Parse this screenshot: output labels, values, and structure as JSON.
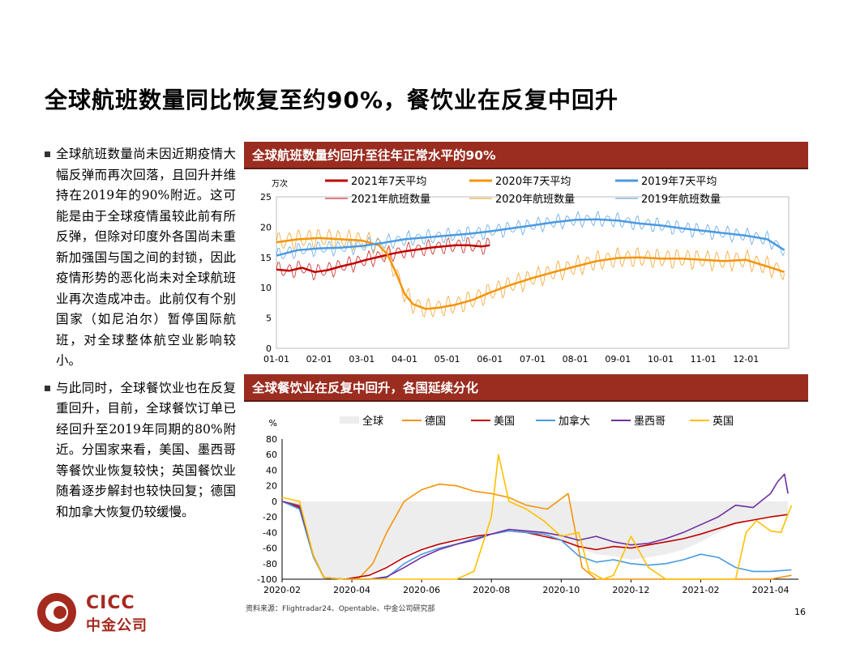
{
  "title": "全球航班数量同比恢复至约90%，餐饮业在反复中回升",
  "bullets": [
    "全球航班数量尚未因近期疫情大幅反弹而再次回落，且回升并维持在2019年的90%附近。这可能是由于全球疫情虽较此前有所反弹，但除对印度外各国尚未重新加强国与国之间的封锁，因此疫情形势的恶化尚未对全球航班业再次造成冲击。此前仅有个别国家（如尼泊尔）暂停国际航班，对全球整体航空业影响较小。",
    "与此同时，全球餐饮业也在反复重回升，目前，全球餐饮订单已经回升至2019年同期的80%附近。分国家来看，美国、墨西哥等餐饮业恢复较快；英国餐饮业随着逐步解封也较快回复；德国和加拿大恢复仍较缓慢。"
  ],
  "footnote": "资料来源：Flightradar24、Opentable、中金公司研究部",
  "page_number": "16",
  "logo": {
    "en": "CICC",
    "cn": "中金公司"
  },
  "colors": {
    "header": "#9b2d20",
    "red": "#c00000",
    "orange": "#f5940a",
    "blue": "#4a9ae0",
    "purple": "#7030a0",
    "yellow": "#ffc000",
    "gray": "#ededed"
  },
  "chart_data": [
    {
      "type": "line",
      "title": "全球航班数量约回升至往年正常水平的90%",
      "ylabel": "万次",
      "ylim": [
        0,
        25
      ],
      "yticks": [
        0,
        5,
        10,
        15,
        20,
        25
      ],
      "x_ticks": [
        "01-01",
        "02-01",
        "03-01",
        "04-01",
        "05-01",
        "06-01",
        "07-01",
        "08-01",
        "09-01",
        "10-01",
        "11-01",
        "12-01"
      ],
      "x_unit": "month (Jan=0 … Dec=11)",
      "legend": [
        "2021年7天平均",
        "2020年7天平均",
        "2019年7天平均",
        "2021年航班数量",
        "2020年航班数量",
        "2019年航班数量"
      ],
      "series": [
        {
          "name": "2021年7天平均",
          "color": "#c00000",
          "width": 2.5,
          "x": [
            0,
            0.3,
            0.6,
            0.9,
            1.2,
            1.5,
            1.8,
            2.1,
            2.4,
            2.7,
            3.0,
            3.3,
            3.6,
            3.9,
            4.2,
            4.5,
            4.8,
            5.0
          ],
          "y": [
            13.0,
            12.8,
            13.3,
            12.6,
            12.9,
            13.5,
            14.0,
            14.6,
            15.1,
            15.6,
            16.0,
            16.3,
            16.6,
            16.8,
            17.0,
            17.0,
            16.8,
            17.0
          ]
        },
        {
          "name": "2020年7天平均",
          "color": "#f5940a",
          "width": 2.5,
          "x": [
            0,
            0.5,
            1.0,
            1.5,
            2.0,
            2.4,
            2.6,
            2.8,
            3.0,
            3.2,
            3.5,
            3.8,
            4.2,
            4.6,
            5.0,
            5.5,
            6.0,
            6.5,
            7.0,
            7.5,
            8.0,
            8.5,
            9.0,
            9.5,
            10.0,
            10.5,
            11.0,
            11.5,
            11.9
          ],
          "y": [
            17.5,
            18.0,
            18.2,
            18.0,
            17.8,
            17.0,
            15.5,
            12.5,
            9.0,
            7.3,
            6.5,
            6.7,
            7.2,
            8.0,
            9.2,
            10.5,
            11.6,
            12.6,
            13.5,
            14.4,
            14.9,
            15.0,
            14.8,
            14.8,
            14.6,
            14.4,
            14.6,
            13.5,
            12.6
          ]
        },
        {
          "name": "2019年7天平均",
          "color": "#4a9ae0",
          "width": 2.5,
          "x": [
            0,
            0.5,
            1.0,
            1.5,
            2.0,
            2.5,
            3.0,
            3.5,
            4.0,
            4.5,
            5.0,
            5.5,
            6.0,
            6.5,
            7.0,
            7.5,
            8.0,
            8.5,
            9.0,
            9.5,
            10.0,
            10.5,
            11.0,
            11.5,
            11.9
          ],
          "y": [
            15.3,
            16.2,
            16.5,
            16.6,
            16.9,
            17.4,
            18.0,
            18.3,
            18.6,
            18.9,
            19.3,
            19.8,
            20.3,
            20.8,
            21.2,
            21.3,
            21.1,
            20.6,
            20.3,
            19.8,
            19.4,
            19.0,
            18.6,
            18.0,
            16.2
          ]
        }
      ]
    },
    {
      "type": "line",
      "title": "全球餐饮业在反复中回升，各国延续分化",
      "ylabel": "%",
      "ylim": [
        -100,
        80
      ],
      "yticks": [
        80,
        60,
        40,
        20,
        0,
        -20,
        -40,
        -60,
        -80,
        -100
      ],
      "x_ticks": [
        "2020-02",
        "2020-04",
        "2020-06",
        "2020-08",
        "2020-10",
        "2020-12",
        "2021-02",
        "2021-04"
      ],
      "x_unit": "months since 2020-02",
      "legend": [
        "全球",
        "德国",
        "美国",
        "加拿大",
        "墨西哥",
        "英国"
      ],
      "series": [
        {
          "name": "全球",
          "type": "area",
          "color": "#ededed",
          "x": [
            0,
            0.5,
            0.9,
            1.2,
            1.8,
            2.5,
            3.0,
            3.5,
            4.0,
            4.5,
            5.0,
            5.5,
            6.0,
            6.5,
            7.0,
            7.5,
            8.0,
            8.5,
            9.0,
            9.5,
            10.0,
            10.5,
            11.0,
            11.5,
            12.0,
            12.5,
            13.0,
            13.5,
            14.0,
            14.5
          ],
          "y": [
            0,
            -10,
            -70,
            -98,
            -100,
            -95,
            -82,
            -70,
            -60,
            -55,
            -48,
            -43,
            -40,
            -38,
            -40,
            -45,
            -50,
            -60,
            -68,
            -70,
            -75,
            -72,
            -68,
            -62,
            -52,
            -40,
            -30,
            -25,
            -20,
            -18
          ]
        },
        {
          "name": "德国",
          "color": "#f5940a",
          "x": [
            0,
            0.5,
            0.9,
            1.2,
            1.8,
            2.2,
            2.6,
            3.0,
            3.5,
            4.0,
            4.5,
            5.0,
            5.5,
            6.0,
            6.5,
            7.0,
            7.6,
            8.2,
            8.6,
            9.0,
            9.5,
            10.0,
            10.5,
            11.0,
            12.0,
            13.0,
            14.0,
            14.6
          ],
          "y": [
            0,
            -5,
            -70,
            -98,
            -100,
            -99,
            -80,
            -40,
            0,
            15,
            22,
            20,
            13,
            10,
            5,
            -5,
            -10,
            10,
            -85,
            -100,
            -100,
            -100,
            -100,
            -100,
            -100,
            -100,
            -100,
            -95
          ]
        },
        {
          "name": "美国",
          "color": "#c00000",
          "x": [
            0,
            0.5,
            0.9,
            1.2,
            1.8,
            2.5,
            3.0,
            3.5,
            4.0,
            4.5,
            5.0,
            5.5,
            6.0,
            6.5,
            7.0,
            7.5,
            8.0,
            8.5,
            9.0,
            9.5,
            10.0,
            10.5,
            11.0,
            11.5,
            12.0,
            12.5,
            13.0,
            13.5,
            14.0,
            14.5
          ],
          "y": [
            0,
            -8,
            -70,
            -98,
            -100,
            -95,
            -85,
            -72,
            -62,
            -55,
            -50,
            -45,
            -42,
            -38,
            -40,
            -45,
            -50,
            -58,
            -62,
            -58,
            -60,
            -56,
            -52,
            -48,
            -42,
            -35,
            -28,
            -24,
            -20,
            -17
          ]
        },
        {
          "name": "加拿大",
          "color": "#4a9ae0",
          "x": [
            0,
            0.5,
            0.9,
            1.2,
            1.8,
            2.5,
            3.0,
            3.5,
            4.0,
            4.5,
            5.0,
            5.5,
            6.0,
            6.5,
            7.0,
            7.5,
            8.0,
            8.5,
            9.0,
            9.5,
            10.0,
            10.5,
            11.0,
            11.5,
            12.0,
            12.5,
            13.0,
            13.5,
            14.0,
            14.6
          ],
          "y": [
            0,
            -10,
            -72,
            -98,
            -100,
            -100,
            -98,
            -80,
            -68,
            -60,
            -55,
            -48,
            -42,
            -38,
            -40,
            -42,
            -50,
            -70,
            -78,
            -75,
            -80,
            -82,
            -80,
            -75,
            -68,
            -72,
            -85,
            -90,
            -90,
            -88
          ]
        },
        {
          "name": "墨西哥",
          "color": "#7030a0",
          "x": [
            0,
            0.5,
            0.9,
            1.2,
            1.8,
            2.5,
            3.0,
            3.5,
            4.0,
            4.5,
            5.0,
            5.5,
            6.0,
            6.5,
            7.0,
            7.5,
            8.0,
            8.5,
            9.0,
            9.5,
            10.0,
            10.5,
            11.0,
            11.5,
            12.0,
            12.5,
            13.0,
            13.5,
            14.0,
            14.2,
            14.4,
            14.5
          ],
          "y": [
            0,
            -6,
            -70,
            -98,
            -100,
            -100,
            -97,
            -85,
            -72,
            -62,
            -55,
            -50,
            -42,
            -36,
            -38,
            -40,
            -44,
            -50,
            -45,
            -52,
            -56,
            -54,
            -48,
            -40,
            -30,
            -20,
            -5,
            -8,
            10,
            25,
            35,
            10
          ]
        },
        {
          "name": "英国",
          "color": "#ffc000",
          "x": [
            0,
            0.5,
            0.9,
            1.2,
            1.8,
            2.5,
            3.0,
            3.5,
            4.0,
            4.5,
            5.0,
            5.5,
            6.0,
            6.2,
            6.5,
            7.0,
            7.5,
            8.0,
            8.5,
            8.8,
            9.2,
            9.5,
            10.0,
            10.5,
            11.0,
            12.0,
            13.0,
            13.3,
            13.6,
            14.0,
            14.3,
            14.6
          ],
          "y": [
            5,
            0,
            -70,
            -98,
            -100,
            -100,
            -100,
            -100,
            -100,
            -100,
            -100,
            -90,
            -20,
            60,
            0,
            -10,
            -25,
            -45,
            -40,
            -90,
            -100,
            -95,
            -45,
            -85,
            -100,
            -100,
            -100,
            -40,
            -25,
            -38,
            -40,
            -5
          ]
        }
      ]
    }
  ]
}
